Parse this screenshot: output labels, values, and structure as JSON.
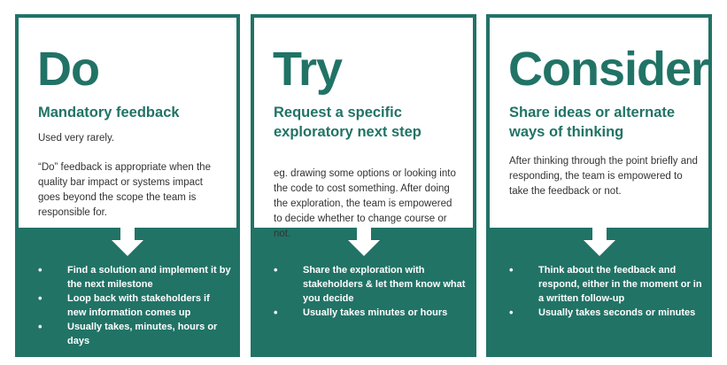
{
  "cards": [
    {
      "title": "Do",
      "subtitle": "Mandatory feedback",
      "description": [
        "Used very rarely.",
        "“Do” feedback is appropriate when the quality bar impact or systems impact goes beyond the scope the team is responsible for."
      ],
      "bullets": [
        "Find a solution and implement it by the next milestone",
        "Loop back with stakeholders if new information comes up",
        "Usually takes, minutes, hours or days"
      ]
    },
    {
      "title": "Try",
      "subtitle": "Request a specific exploratory next step",
      "description": [
        "eg. drawing some options or looking into the code to cost something. After doing the exploration, the team is empowered to decide whether to change course or not."
      ],
      "bullets": [
        "Share the exploration with stakeholders & let them know what you decide",
        "Usually takes minutes or hours"
      ]
    },
    {
      "title": "Consider",
      "subtitle": "Share ideas or alternate ways of thinking",
      "description": [
        "After thinking through the point briefly and responding, the team is empowered to take the feedback or not."
      ],
      "bullets": [
        "Think about the feedback and respond, either in the moment or in a written follow-up",
        "Usually takes seconds or minutes"
      ]
    }
  ],
  "colors": {
    "accent": "#217366",
    "text": "#333333"
  }
}
